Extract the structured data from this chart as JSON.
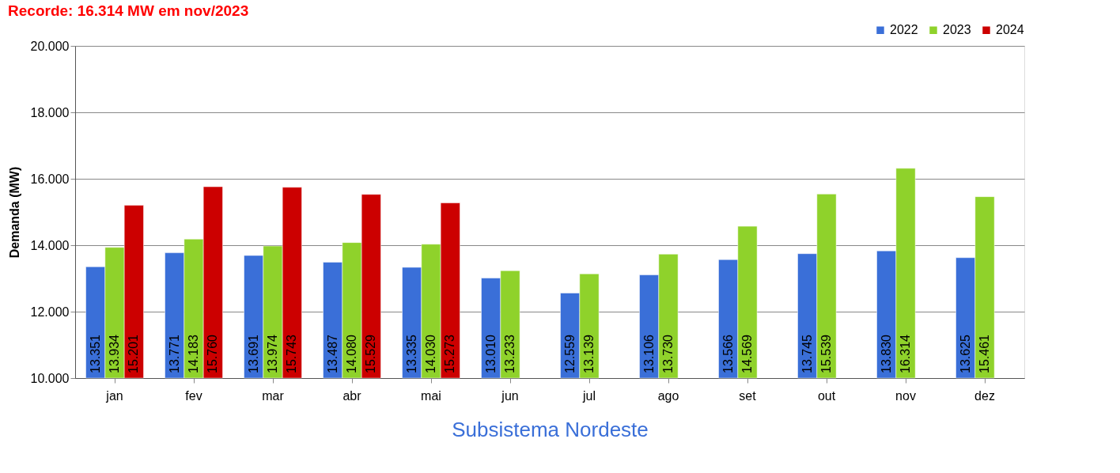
{
  "chart_data": {
    "type": "bar",
    "title": "Recorde: 16.314 MW em nov/2023",
    "xlabel": "Subsistema Nordeste",
    "ylabel": "Demanda (MW)",
    "categories": [
      "jan",
      "fev",
      "mar",
      "abr",
      "mai",
      "jun",
      "jul",
      "ago",
      "set",
      "out",
      "nov",
      "dez"
    ],
    "series": [
      {
        "name": "2022",
        "color": "#3a6fd8",
        "values": [
          13351,
          13771,
          13691,
          13487,
          13335,
          13010,
          12559,
          13106,
          13566,
          13745,
          13830,
          13625
        ],
        "value_labels": [
          "13.351",
          "13.771",
          "13.691",
          "13.487",
          "13.335",
          "13.010",
          "12.559",
          "13.106",
          "13.566",
          "13.745",
          "13.830",
          "13.625"
        ]
      },
      {
        "name": "2023",
        "color": "#8fd22b",
        "values": [
          13934,
          14183,
          13974,
          14080,
          14030,
          13233,
          13139,
          13730,
          14569,
          15539,
          16314,
          15461
        ],
        "value_labels": [
          "13.934",
          "14.183",
          "13.974",
          "14.080",
          "14.030",
          "13.233",
          "13.139",
          "13.730",
          "14.569",
          "15.539",
          "16.314",
          "15.461"
        ]
      },
      {
        "name": "2024",
        "color": "#cc0000",
        "values": [
          15201,
          15760,
          15743,
          15529,
          15273,
          null,
          null,
          null,
          null,
          null,
          null,
          null
        ],
        "value_labels": [
          "15.201",
          "15.760",
          "15.743",
          "15.529",
          "15.273",
          null,
          null,
          null,
          null,
          null,
          null,
          null
        ]
      }
    ],
    "ylim": [
      10000,
      20000
    ],
    "yticks": [
      {
        "value": 10000,
        "label": "10.000"
      },
      {
        "value": 12000,
        "label": "12.000"
      },
      {
        "value": 14000,
        "label": "14.000"
      },
      {
        "value": 16000,
        "label": "16.000"
      },
      {
        "value": 18000,
        "label": "18.000"
      },
      {
        "value": 20000,
        "label": "20.000"
      }
    ],
    "grid": "y",
    "legend": "top right"
  }
}
